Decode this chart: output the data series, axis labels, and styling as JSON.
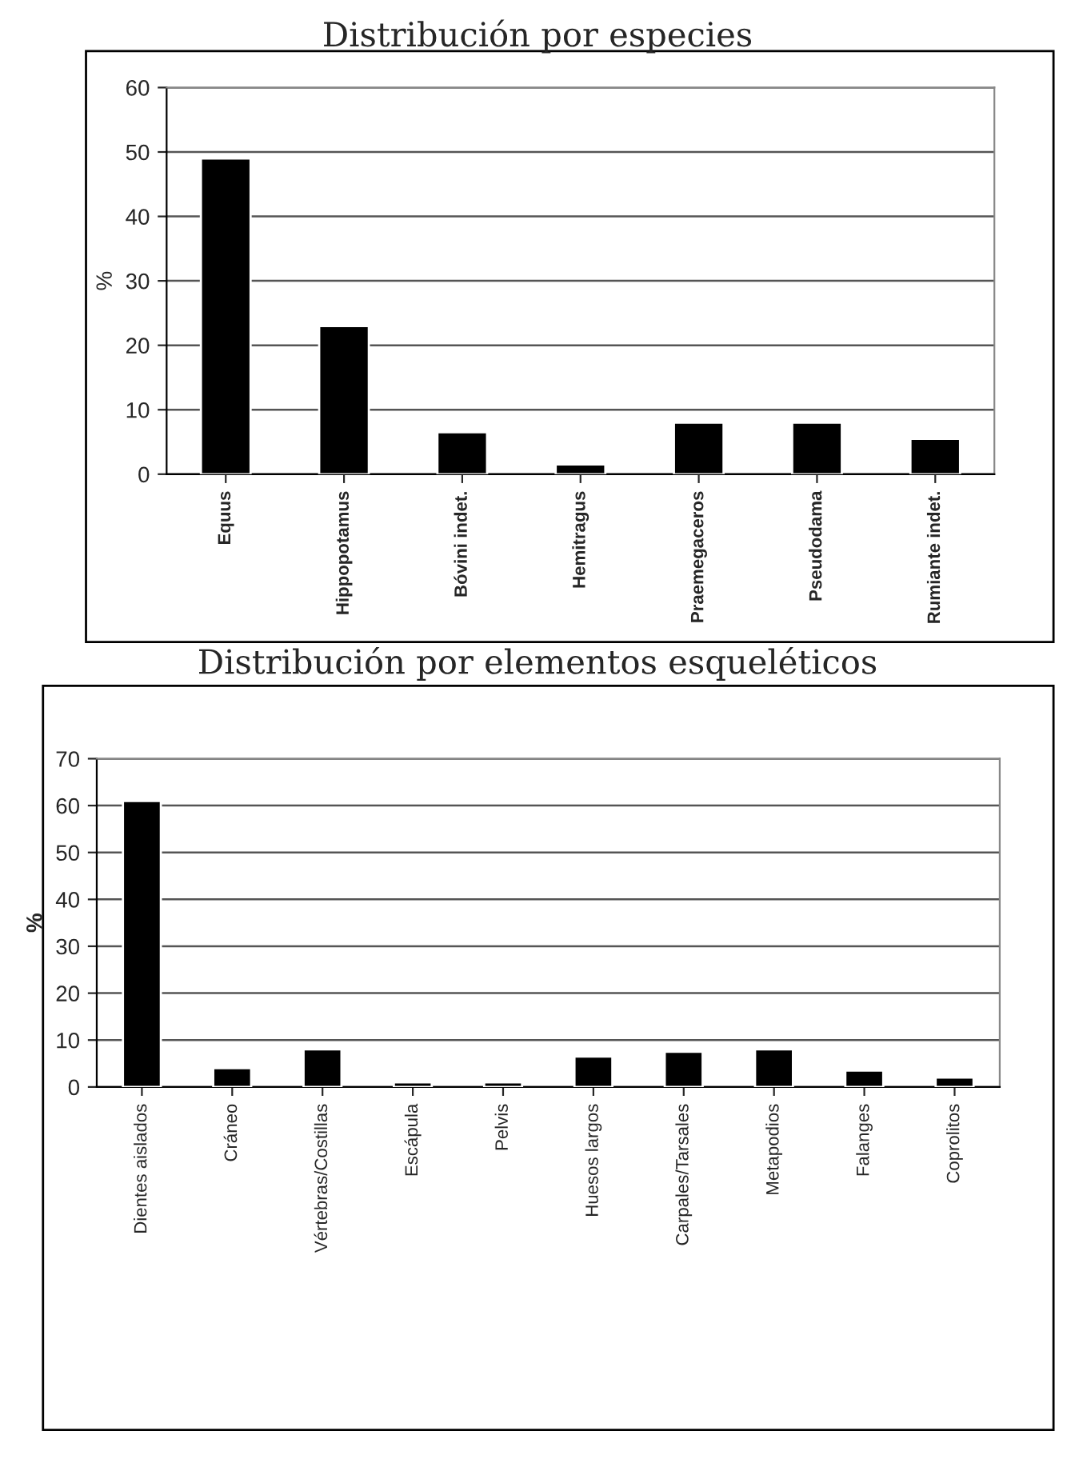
{
  "chart_data": [
    {
      "type": "bar",
      "title": "Distribución por especies",
      "ylabel": "%",
      "categories": [
        "Equus",
        "Hippopotamus",
        "Bóvini indet.",
        "Hemitragus",
        "Praemegaceros",
        "Pseudodama",
        "Rumiante indet."
      ],
      "values": [
        49,
        23,
        6.5,
        1.5,
        8,
        8,
        5.5
      ],
      "color": "#000000",
      "ylim": [
        0,
        60
      ],
      "yticks": [
        0,
        10,
        20,
        30,
        40,
        50,
        60
      ],
      "grid": "y"
    },
    {
      "type": "bar",
      "title": "Distribución por elementos esqueléticos",
      "ylabel": "%",
      "categories": [
        "Dientes aislados",
        "Cráneo",
        "Vértebras/Costillas",
        "Escápula",
        "Pelvis",
        "Huesos largos",
        "Carpales/Tarsales",
        "Metapodios",
        "Falanges",
        "Coprolitos"
      ],
      "values": [
        61,
        4,
        8,
        1,
        1,
        6.5,
        7.5,
        8,
        3.5,
        2
      ],
      "color": "#000000",
      "ylim": [
        0,
        70
      ],
      "yticks": [
        0,
        10,
        20,
        30,
        40,
        50,
        60,
        70
      ],
      "grid": "y"
    }
  ]
}
